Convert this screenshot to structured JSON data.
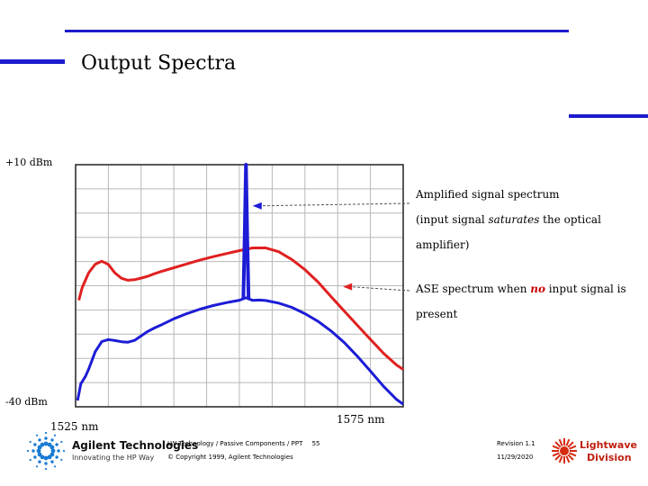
{
  "slide": {
    "title": "Output Spectra"
  },
  "chart_data": {
    "type": "line",
    "title": "",
    "xlabel": "",
    "ylabel": "",
    "x_tick_labels": [
      "1525 nm",
      "1575 nm"
    ],
    "y_tick_labels": [
      "+10 dBm",
      "-40 dBm"
    ],
    "xlim": [
      1525,
      1575
    ],
    "ylim": [
      -40,
      10
    ],
    "grid": true,
    "series": [
      {
        "color": "#e02020",
        "x": [
          1525.5,
          1526,
          1527,
          1528,
          1529,
          1530,
          1531,
          1532,
          1533,
          1534,
          1535,
          1536,
          1537,
          1538,
          1540,
          1542,
          1544,
          1546,
          1548,
          1550,
          1552,
          1554,
          1556,
          1558,
          1560,
          1562,
          1564,
          1566,
          1568,
          1570,
          1572,
          1574,
          1575
        ],
        "y": [
          -18,
          -15.5,
          -12.5,
          -10.8,
          -10.2,
          -10.8,
          -12.5,
          -13.5,
          -13.8,
          -13.6,
          -13.2,
          -12.8,
          -12.3,
          -11.9,
          -11.2,
          -10.5,
          -9.8,
          -9.2,
          -8.6,
          -8.0,
          -7.4,
          -7.3,
          -8.0,
          -9.5,
          -11.5,
          -14.0,
          -17.0,
          -20.0,
          -23.0,
          -26.0,
          -29.0,
          -31.5,
          -32.5
        ]
      },
      {
        "color": "#1c1cd6",
        "x": [
          1525.3,
          1525.8,
          1526.5,
          1527,
          1528,
          1529,
          1530,
          1531,
          1532,
          1533,
          1534,
          1535,
          1536,
          1537,
          1538,
          1540,
          1542,
          1544,
          1546,
          1548,
          1550,
          1551,
          1552,
          1553,
          1554,
          1556,
          1558,
          1560,
          1562,
          1564,
          1566,
          1568,
          1570,
          1572,
          1574,
          1575
        ],
        "y": [
          -38.5,
          -35,
          -33.5,
          -32,
          -28.5,
          -26.5,
          -26.2,
          -26.5,
          -26.8,
          -26.9,
          -26.5,
          -25.5,
          -24.5,
          -23.7,
          -23.0,
          -21.6,
          -20.5,
          -19.6,
          -18.9,
          -18.4,
          -18.0,
          -17.6,
          -18.2,
          -18.2,
          -18.3,
          -18.8,
          -19.6,
          -20.8,
          -22.3,
          -24.2,
          -26.5,
          -29.3,
          -32.4,
          -35.6,
          -38.4,
          -39.5
        ]
      },
      {
        "color": "#1c1cd6",
        "x": [
          1550.6,
          1550.8,
          1551,
          1551.2,
          1551.4
        ],
        "y": [
          -17.6,
          -5,
          10,
          -5,
          -17.6
        ]
      }
    ],
    "annotations": [
      {
        "text_lines": [
          "Amplified signal spectrum",
          "(input signal saturates the optical amplifier)"
        ],
        "italic_word": "saturates",
        "arrow_color": "#1c1cd6",
        "points_to": [
          1551.2,
          1.5
        ]
      },
      {
        "text_lines": [
          "ASE spectrum when no input signal is",
          "present"
        ],
        "highlight_word": "no",
        "arrow_color": "#e02020",
        "points_to": [
          1565,
          -15.2
        ]
      }
    ]
  },
  "footer": {
    "company": "Agilent Technologies",
    "tagline": "Innovating the HP Way",
    "course": "LW Technology / Passive Components / PPT",
    "page": "55",
    "copyright": "© Copyright 1999, Agilent Technologies",
    "revision": "Revision 1.1",
    "date": "11/29/2020",
    "division_top": "Lightwave",
    "division_bottom": "Division"
  },
  "colors": {
    "accent_rule": "#1c1ccc",
    "grid": "#b8b8b8"
  }
}
